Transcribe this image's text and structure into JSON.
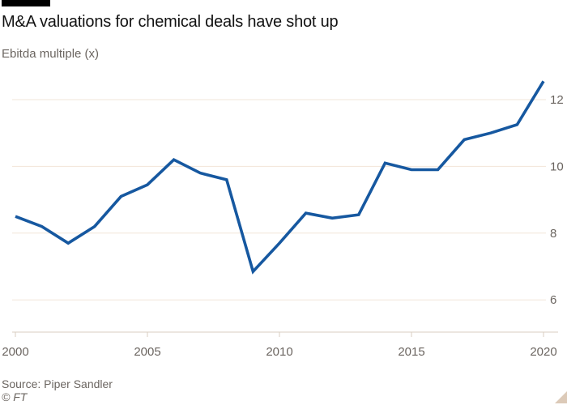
{
  "chart_data": {
    "type": "line",
    "title": "M&A valuations for chemical deals have shot up",
    "subtitle": "Ebitda multiple (x)",
    "x": [
      2000,
      2001,
      2002,
      2003,
      2004,
      2005,
      2006,
      2007,
      2008,
      2009,
      2010,
      2011,
      2012,
      2013,
      2014,
      2015,
      2016,
      2017,
      2018,
      2019,
      2020
    ],
    "series": [
      {
        "name": "Ebitda multiple (x)",
        "values": [
          8.5,
          8.2,
          7.7,
          8.2,
          9.1,
          9.45,
          10.2,
          9.8,
          9.6,
          6.85,
          7.7,
          8.6,
          8.45,
          8.55,
          10.1,
          9.9,
          9.9,
          10.8,
          11.0,
          11.25,
          12.55
        ]
      }
    ],
    "x_ticks": [
      2000,
      2005,
      2010,
      2015,
      2020
    ],
    "y_ticks": [
      6,
      8,
      10,
      12
    ],
    "xlim": [
      2000,
      2020
    ],
    "ylim": [
      4.95,
      12.85
    ],
    "grid": "horizontal-only",
    "legend": "none",
    "y_axis_side": "right",
    "colors": {
      "line": "#1658a0",
      "grid": "#f2e5d8",
      "axis": "#d9cec2",
      "tick_label": "#6b6560",
      "title": "#121212",
      "subtitle": "#6b6560",
      "topper_bar": "#000000",
      "corner_triangle": "#dccab8"
    }
  },
  "footer": {
    "source": "Source: Piper Sandler",
    "copyright": "© FT"
  }
}
